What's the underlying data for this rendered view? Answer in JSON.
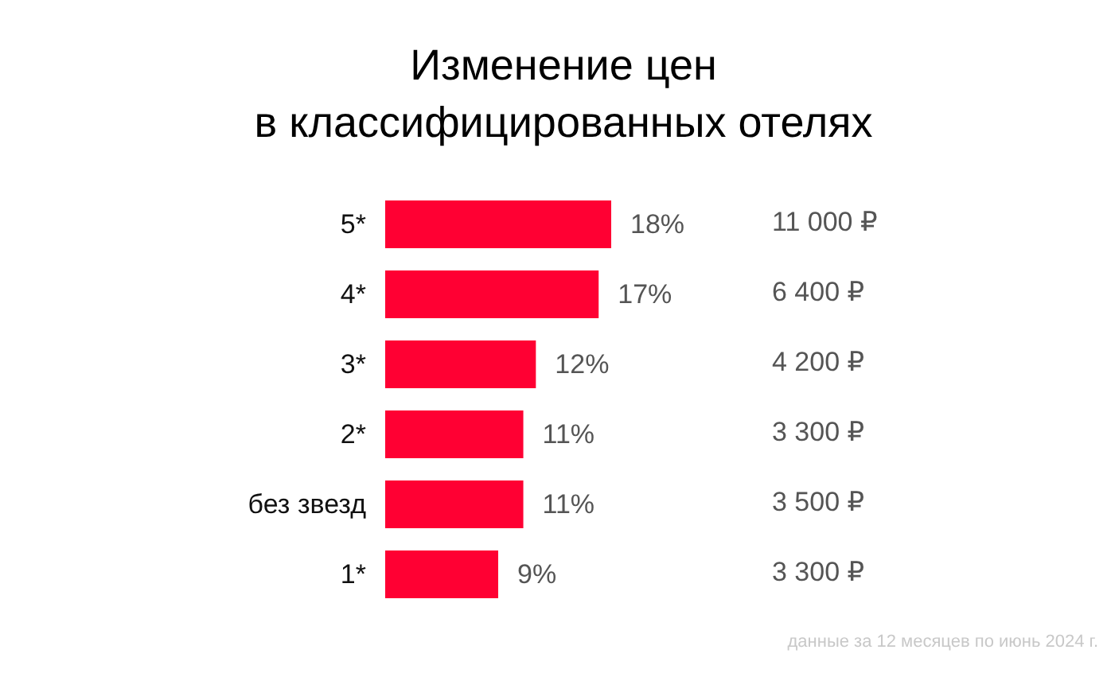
{
  "chart_data": {
    "type": "bar",
    "orientation": "horizontal",
    "title": "Изменение цен\nв классифицированных отелях",
    "categories": [
      "5*",
      "4*",
      "3*",
      "2*",
      "без звезд",
      "1*"
    ],
    "values": [
      18,
      17,
      12,
      11,
      11,
      9
    ],
    "value_labels": [
      "18%",
      "17%",
      "12%",
      "11%",
      "11%",
      "9%"
    ],
    "color": "#ff0033",
    "tick_labels": "y",
    "annotations": [
      "11 000 ₽",
      "6 400 ₽",
      "4 200 ₽",
      "3 300 ₽",
      "3 500 ₽",
      "3 300 ₽",
      "данные за 12 месяцев по июнь 2024 г."
    ]
  }
}
